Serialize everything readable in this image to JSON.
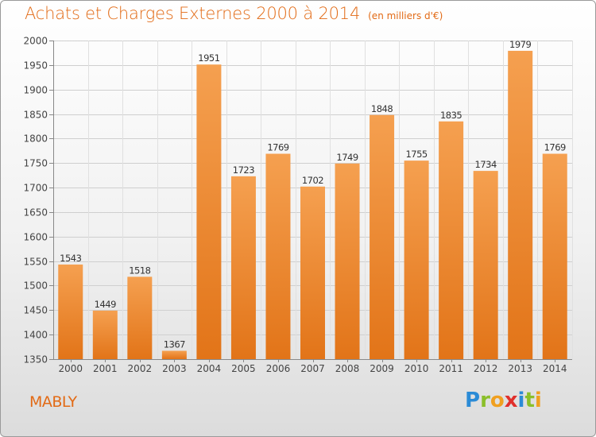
{
  "chart_data": {
    "type": "bar",
    "title": "Achats et Charges Externes 2000 à 2014",
    "subtitle": "(en milliers d'€)",
    "xlabel": "",
    "ylabel": "",
    "categories": [
      "2000",
      "2001",
      "2002",
      "2003",
      "2004",
      "2005",
      "2006",
      "2007",
      "2008",
      "2009",
      "2010",
      "2011",
      "2012",
      "2013",
      "2014"
    ],
    "values": [
      1543,
      1449,
      1518,
      1367,
      1951,
      1723,
      1769,
      1702,
      1749,
      1848,
      1755,
      1835,
      1734,
      1979,
      1769
    ],
    "ylim": [
      1350,
      2000
    ],
    "yticks": [
      1350,
      1400,
      1450,
      1500,
      1550,
      1600,
      1650,
      1700,
      1750,
      1800,
      1850,
      1900,
      1950,
      2000
    ],
    "grid": true,
    "legend": "none",
    "bar_color": "#f0913a"
  },
  "footer": {
    "city": "MABLY",
    "brand_letters": [
      "P",
      "r",
      "o",
      "x",
      "i",
      "t",
      "i"
    ],
    "brand_colors": [
      "#2b8bd6",
      "#8bbf2a",
      "#f0a020",
      "#e0302c",
      "#2b8bd6",
      "#8bbf2a",
      "#f0a020"
    ]
  }
}
